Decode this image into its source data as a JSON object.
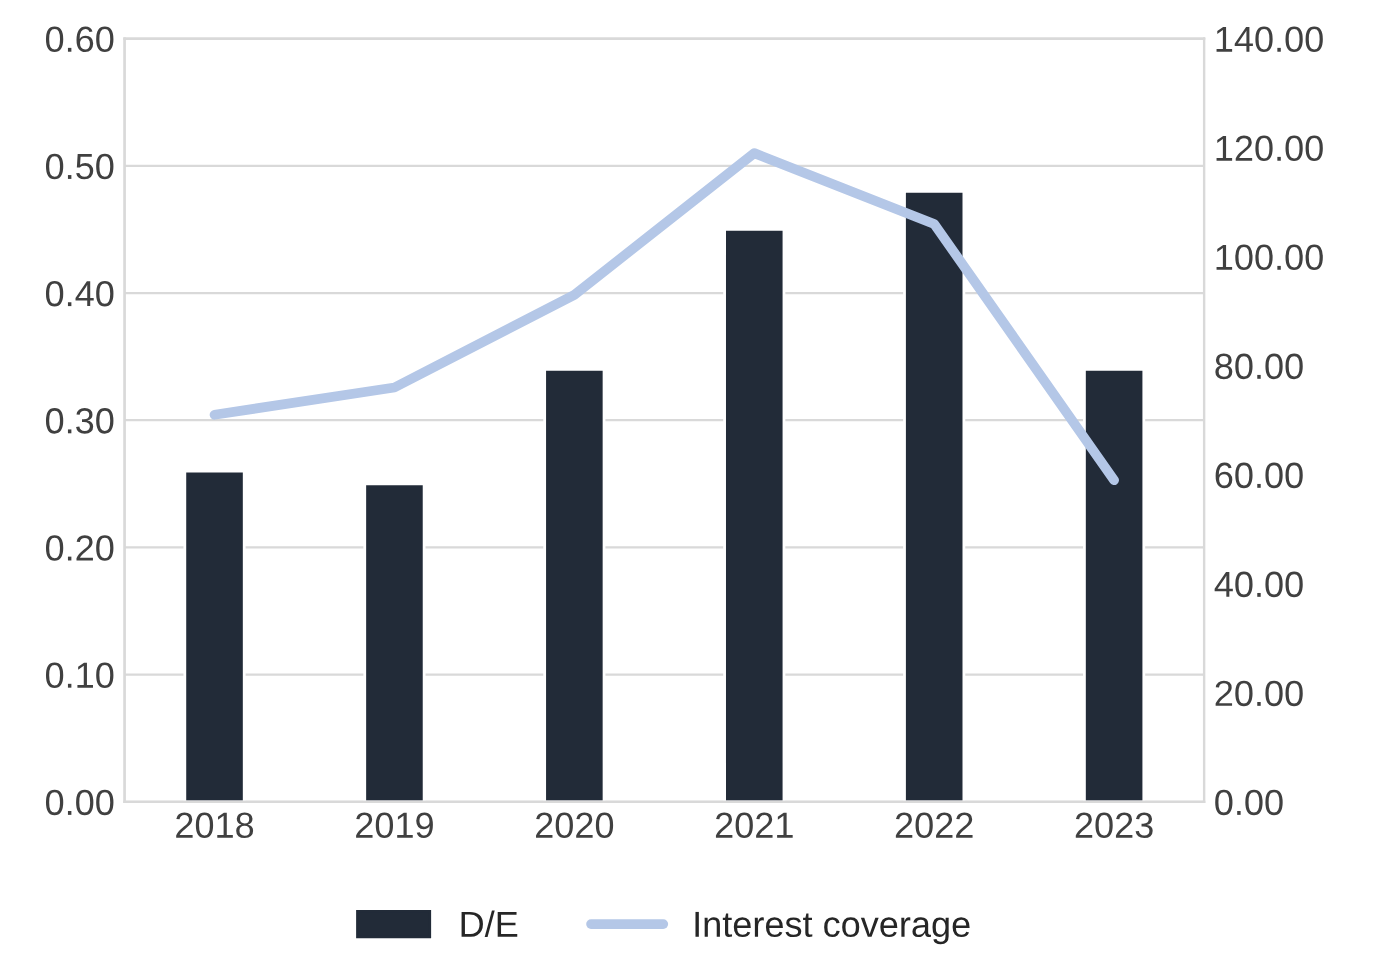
{
  "chart_data": {
    "type": "bar",
    "categories": [
      "2018",
      "2019",
      "2020",
      "2021",
      "2022",
      "2023"
    ],
    "series": [
      {
        "name": "D/E",
        "color": "#222b38",
        "values": [
          0.26,
          0.25,
          0.34,
          0.45,
          0.48,
          0.34
        ]
      },
      {
        "name": "Interest coverage",
        "type": "line",
        "axis": "y2",
        "color": "#b4c7e7",
        "values": [
          71,
          76,
          93,
          119,
          106,
          59
        ]
      }
    ],
    "ylim": [
      0,
      0.6
    ],
    "yticks": [
      {
        "value": 0,
        "label": "0.00"
      },
      {
        "value": 0.1,
        "label": "0.10"
      },
      {
        "value": 0.2,
        "label": "0.20"
      },
      {
        "value": 0.3,
        "label": "0.30"
      },
      {
        "value": 0.4,
        "label": "0.40"
      },
      {
        "value": 0.5,
        "label": "0.50"
      },
      {
        "value": 0.6,
        "label": "0.60"
      }
    ],
    "y2lim": [
      0,
      140
    ],
    "y2ticks": [
      {
        "value": 0,
        "label": "0.00"
      },
      {
        "value": 20,
        "label": "20.00"
      },
      {
        "value": 40,
        "label": "40.00"
      },
      {
        "value": 60,
        "label": "60.00"
      },
      {
        "value": 80,
        "label": "80.00"
      },
      {
        "value": 100,
        "label": "100.00"
      },
      {
        "value": 120,
        "label": "120.00"
      },
      {
        "value": 140,
        "label": "140.00"
      }
    ],
    "grid": "y",
    "legend": "bottom",
    "marker": "none",
    "line_style": "solid"
  }
}
